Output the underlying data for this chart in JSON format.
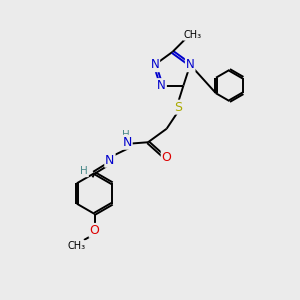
{
  "background_color": "#ebebeb",
  "atom_colors": {
    "C": "#000000",
    "N": "#0000cc",
    "O": "#dd0000",
    "S": "#aaaa00",
    "H": "#4a8a8a"
  },
  "bond_color": "#000000",
  "font_size": 8.5,
  "fig_size": [
    3.0,
    3.0
  ],
  "dpi": 100,
  "lw": 1.4
}
